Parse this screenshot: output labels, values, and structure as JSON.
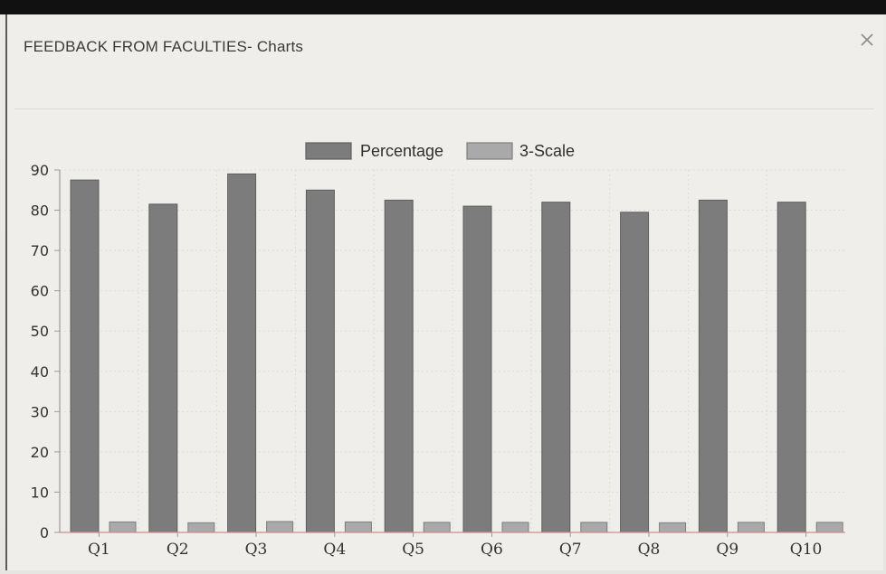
{
  "modal": {
    "title": "FEEDBACK FROM FACULTIES- Charts",
    "close_label": "×"
  },
  "colors": {
    "percentage_fill": "#7c7c7c",
    "percentage_stroke": "#5e5e5e",
    "scale_fill": "#a9a9a9",
    "scale_stroke": "#7e7e7e",
    "axis": "#9a9a9a",
    "baseline": "#c89090",
    "grid": "#dcdcd8"
  },
  "chart_data": {
    "type": "bar",
    "title": "",
    "xlabel": "",
    "ylabel": "",
    "categories": [
      "Q1",
      "Q2",
      "Q3",
      "Q4",
      "Q5",
      "Q6",
      "Q7",
      "Q8",
      "Q9",
      "Q10"
    ],
    "series": [
      {
        "name": "Percentage",
        "values": [
          87.5,
          81.5,
          89,
          85,
          82.5,
          81,
          82,
          79.5,
          82.5,
          82
        ]
      },
      {
        "name": "3-Scale",
        "values": [
          2.6,
          2.4,
          2.7,
          2.6,
          2.5,
          2.5,
          2.5,
          2.4,
          2.5,
          2.5
        ]
      }
    ],
    "ylim": [
      0,
      90
    ],
    "yticks": [
      "0",
      "10",
      "20",
      "30",
      "40",
      "50",
      "60",
      "70",
      "80",
      "90"
    ],
    "grid": true,
    "legend_position": "top-center"
  }
}
